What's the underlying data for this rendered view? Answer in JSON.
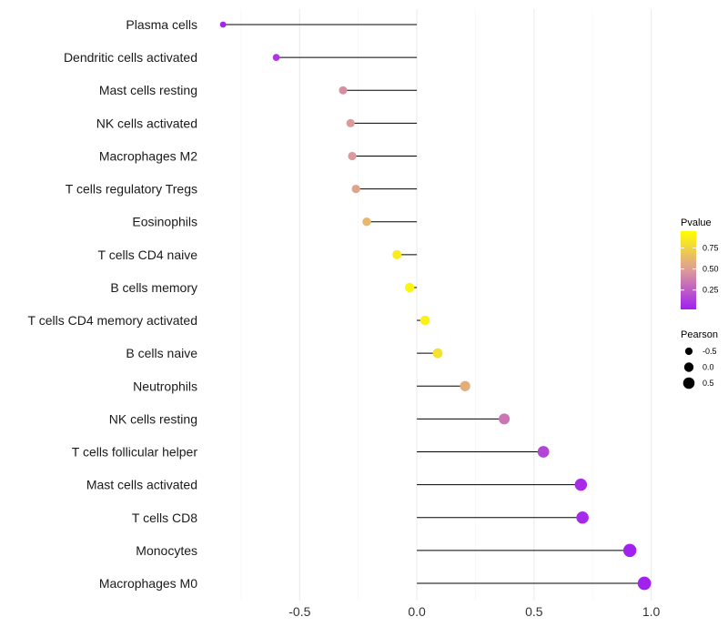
{
  "chart_data": {
    "type": "lollipop",
    "title": "",
    "xlabel": "",
    "ylabel": "",
    "xlim": [
      -0.878,
      1.056
    ],
    "xticks": [
      -0.5,
      0.0,
      0.5,
      1.0
    ],
    "xtick_labels": [
      "-0.5",
      "0.0",
      "0.5",
      "1.0"
    ],
    "grid": true,
    "categories": [
      "Plasma cells",
      "Dendritic cells activated",
      "Mast cells resting",
      "NK cells activated",
      "Macrophages M2",
      "T cells regulatory  Tregs",
      "Eosinophils",
      "T cells CD4 naive",
      "B cells memory",
      "T cells CD4 memory activated",
      "B cells naive",
      "Neutrophils",
      "NK cells resting",
      "T cells follicular helper",
      "Mast cells activated",
      "T cells CD8",
      "Monocytes",
      "Macrophages M0"
    ],
    "pearson": [
      -0.827,
      -0.6,
      -0.315,
      -0.283,
      -0.276,
      -0.26,
      -0.214,
      -0.085,
      -0.031,
      0.035,
      0.089,
      0.206,
      0.373,
      0.54,
      0.7,
      0.707,
      0.909,
      0.971
    ],
    "pvalue": [
      0.02,
      0.1,
      0.45,
      0.5,
      0.5,
      0.55,
      0.65,
      0.9,
      0.95,
      0.93,
      0.85,
      0.6,
      0.35,
      0.15,
      0.05,
      0.04,
      0.01,
      0.005
    ],
    "legend": {
      "color_title": "Pvalue",
      "color_ticks": [
        0.25,
        0.5,
        0.75
      ],
      "color_tick_labels": [
        "0.25",
        "0.50",
        "0.75"
      ],
      "color_low": "#a020f0",
      "color_mid": "#dd9a9a",
      "color_high": "#ffff00",
      "size_title": "Pearson",
      "size_values": [
        -0.5,
        0.0,
        0.5
      ],
      "size_labels": [
        "-0.5",
        "0.0",
        "0.5"
      ],
      "placement": "right"
    }
  }
}
